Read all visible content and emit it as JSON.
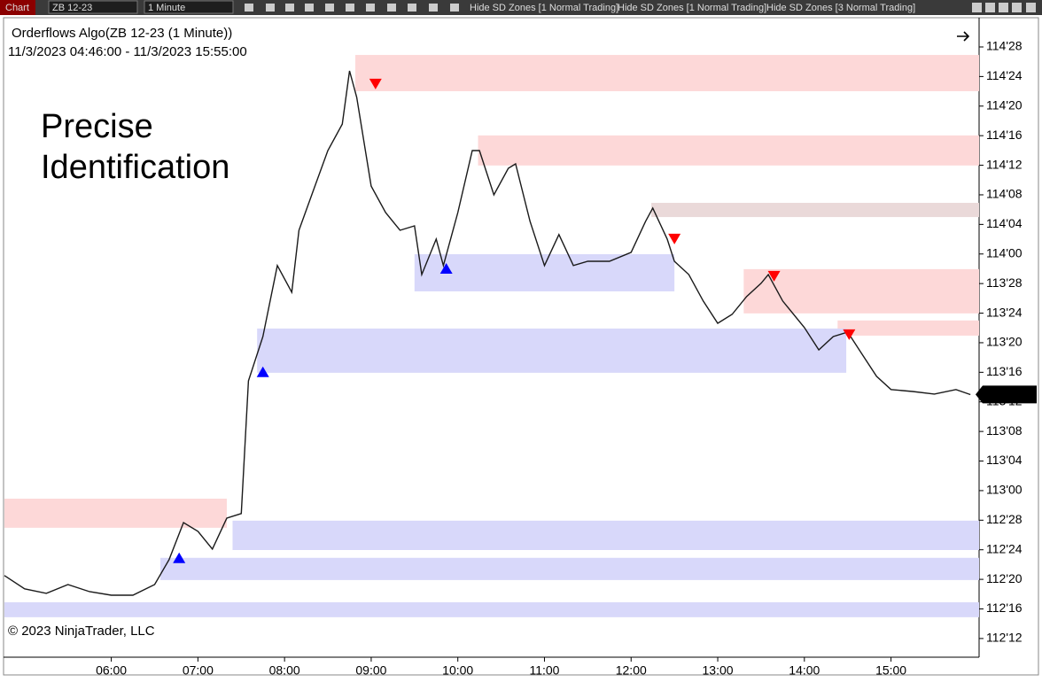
{
  "toolbar": {
    "tab": "Chart",
    "instrument": "ZB 12-23",
    "interval": "1 Minute",
    "buttons": [
      "Hide SD Zones [1 Normal Trading]",
      "Hide SD Zones [1 Normal Trading]",
      "Hide SD Zones [3 Normal Trading]"
    ]
  },
  "chart_data": {
    "type": "line",
    "title": "Orderflows Algo(ZB 12-23 (1 Minute))",
    "subtitle": "11/3/2023 04:46:00 - 11/3/2023 15:55:00",
    "annotations": [
      "Precise",
      "Identification"
    ],
    "copyright": "© 2023 NinjaTrader, LLC",
    "x": [
      "04:46",
      "05:00",
      "05:15",
      "05:30",
      "05:45",
      "06:00",
      "06:15",
      "06:30",
      "06:40",
      "06:50",
      "07:00",
      "07:10",
      "07:20",
      "07:30",
      "07:35",
      "07:45",
      "07:55",
      "08:05",
      "08:10",
      "08:20",
      "08:30",
      "08:40",
      "08:45",
      "08:50",
      "09:00",
      "09:10",
      "09:20",
      "09:30",
      "09:35",
      "09:45",
      "09:50",
      "10:00",
      "10:10",
      "10:15",
      "10:25",
      "10:35",
      "10:40",
      "10:50",
      "11:00",
      "11:10",
      "11:20",
      "11:30",
      "11:45",
      "12:00",
      "12:10",
      "12:15",
      "12:25",
      "12:30",
      "12:40",
      "12:50",
      "13:00",
      "13:10",
      "13:20",
      "13:30",
      "13:35",
      "13:45",
      "14:00",
      "14:10",
      "14:20",
      "14:30",
      "14:40",
      "14:50",
      "15:00",
      "15:15",
      "15:30",
      "15:45",
      "15:55"
    ],
    "series": [
      {
        "name": "ZB 12-23",
        "color": "#1a1a1a",
        "values": [
          112.641,
          112.585,
          112.566,
          112.603,
          112.573,
          112.558,
          112.558,
          112.603,
          112.708,
          112.865,
          112.828,
          112.753,
          112.884,
          112.903,
          113.464,
          113.651,
          113.951,
          113.838,
          114.1,
          114.269,
          114.437,
          114.549,
          114.774,
          114.662,
          114.287,
          114.175,
          114.1,
          114.119,
          113.913,
          114.063,
          113.951,
          114.175,
          114.437,
          114.437,
          114.25,
          114.362,
          114.381,
          114.138,
          113.951,
          114.082,
          113.951,
          113.969,
          113.969,
          114.007,
          114.138,
          114.194,
          114.063,
          113.969,
          113.913,
          113.801,
          113.707,
          113.745,
          113.82,
          113.876,
          113.913,
          113.801,
          113.689,
          113.595,
          113.651,
          113.67,
          113.576,
          113.483,
          113.427,
          113.419,
          113.408,
          113.427,
          113.406
        ]
      }
    ],
    "zones": [
      {
        "start": "08:49",
        "end": null,
        "low": 114.688,
        "high": 114.841,
        "color": "#fdd8d8"
      },
      {
        "start": "10:14",
        "end": null,
        "low": 114.374,
        "high": 114.501,
        "color": "#fdd8d8"
      },
      {
        "start": "12:14",
        "end": null,
        "low": 114.156,
        "high": 114.216,
        "color": "#ead9d9"
      },
      {
        "start": "13:18",
        "end": null,
        "low": 113.749,
        "high": 113.936,
        "color": "#fdd8d8"
      },
      {
        "start": "14:23",
        "end": null,
        "low": 113.655,
        "high": 113.719,
        "color": "#fdd8d8"
      },
      {
        "start": "04:46",
        "end": "07:20",
        "low": 112.843,
        "high": 112.966,
        "color": "#fdd8d8"
      },
      {
        "start": "09:30",
        "end": "12:30",
        "low": 113.842,
        "high": 113.999,
        "color": "#d8d8fa"
      },
      {
        "start": "07:41",
        "end": "14:29",
        "low": 113.498,
        "high": 113.685,
        "color": "#d8d8fa"
      },
      {
        "start": "07:24",
        "end": null,
        "low": 112.749,
        "high": 112.873,
        "color": "#d8d8fa"
      },
      {
        "start": "06:34",
        "end": null,
        "low": 112.622,
        "high": 112.716,
        "color": "#d8d8fa"
      },
      {
        "start": "04:46",
        "end": null,
        "low": 112.465,
        "high": 112.528,
        "color": "#d8d8fa"
      }
    ],
    "signals": [
      {
        "x": "09:03",
        "value": 114.718,
        "color": "#ff0000"
      },
      {
        "x": "12:30",
        "value": 114.063,
        "color": "#ff0000"
      },
      {
        "x": "13:39",
        "value": 113.906,
        "color": "#ff0000"
      },
      {
        "x": "14:31",
        "value": 113.659,
        "color": "#ff0000"
      },
      {
        "x": "07:45",
        "value": 113.502,
        "color": "#0000ff"
      },
      {
        "x": "09:52",
        "value": 113.939,
        "color": "#0000ff"
      },
      {
        "x": "06:47",
        "value": 112.716,
        "color": "#0000ff"
      }
    ],
    "last_price": {
      "value": 113.40625,
      "label": "113'13"
    },
    "xlim": [
      "04:46",
      "16:01"
    ],
    "xticks": [
      "06:00",
      "07:00",
      "08:00",
      "09:00",
      "10:00",
      "11:00",
      "12:00",
      "13:00",
      "14:00",
      "15:00"
    ],
    "ylim": [
      112.296,
      114.991
    ],
    "yticks": [
      {
        "value": 114.875,
        "label": "114'28"
      },
      {
        "value": 114.75,
        "label": "114'24"
      },
      {
        "value": 114.625,
        "label": "114'20"
      },
      {
        "value": 114.5,
        "label": "114'16"
      },
      {
        "value": 114.375,
        "label": "114'12"
      },
      {
        "value": 114.25,
        "label": "114'08"
      },
      {
        "value": 114.125,
        "label": "114'04"
      },
      {
        "value": 114,
        "label": "114'00"
      },
      {
        "value": 113.875,
        "label": "113'28"
      },
      {
        "value": 113.75,
        "label": "113'24"
      },
      {
        "value": 113.625,
        "label": "113'20"
      },
      {
        "value": 113.5,
        "label": "113'16"
      },
      {
        "value": 113.375,
        "label": "113'12"
      },
      {
        "value": 113.25,
        "label": "113'08"
      },
      {
        "value": 113.125,
        "label": "113'04"
      },
      {
        "value": 113,
        "label": "113'00"
      },
      {
        "value": 112.875,
        "label": "112'28"
      },
      {
        "value": 112.75,
        "label": "112'24"
      },
      {
        "value": 112.625,
        "label": "112'20"
      },
      {
        "value": 112.5,
        "label": "112'16"
      },
      {
        "value": 112.375,
        "label": "112'12"
      }
    ]
  }
}
